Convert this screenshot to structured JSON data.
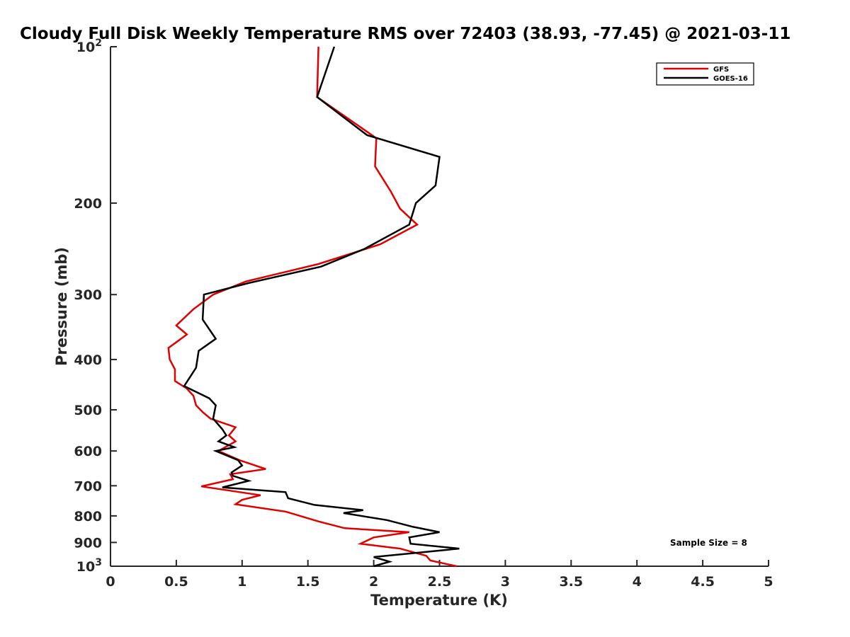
{
  "chart_data": {
    "type": "line",
    "title": "Cloudy Full Disk Weekly Temperature RMS over 72403 (38.93, -77.45) @ 2021-03-11",
    "xlabel": "Temperature (K)",
    "ylabel": "Pressure (mb)",
    "xlim": [
      0,
      5
    ],
    "ylim": [
      100,
      1000
    ],
    "y_scale": "log",
    "y_reversed": true,
    "x_ticks": [
      "0",
      "0.5",
      "1",
      "1.5",
      "2",
      "2.5",
      "3",
      "3.5",
      "4",
      "4.5",
      "5"
    ],
    "y_ticks": [
      {
        "value": 100,
        "base": "10",
        "exp": "2"
      },
      {
        "value": 200,
        "label": "200"
      },
      {
        "value": 300,
        "label": "300"
      },
      {
        "value": 400,
        "label": "400"
      },
      {
        "value": 500,
        "label": "500"
      },
      {
        "value": 600,
        "label": "600"
      },
      {
        "value": 700,
        "label": "700"
      },
      {
        "value": 800,
        "label": "800"
      },
      {
        "value": 900,
        "label": "900"
      },
      {
        "value": 1000,
        "base": "10",
        "exp": "3"
      }
    ],
    "grid": false,
    "legend_position": "top-right",
    "annotation": "Sample Size = 8",
    "series": [
      {
        "name": "GFS",
        "color": "#e00000",
        "points": [
          [
            1.58,
            100
          ],
          [
            1.57,
            125
          ],
          [
            2.02,
            150
          ],
          [
            2.01,
            170
          ],
          [
            2.13,
            190
          ],
          [
            2.2,
            205
          ],
          [
            2.33,
            220
          ],
          [
            2.05,
            240
          ],
          [
            1.58,
            262
          ],
          [
            1.03,
            283
          ],
          [
            0.78,
            300
          ],
          [
            0.63,
            320
          ],
          [
            0.5,
            344
          ],
          [
            0.58,
            358
          ],
          [
            0.44,
            380
          ],
          [
            0.45,
            400
          ],
          [
            0.49,
            418
          ],
          [
            0.49,
            440
          ],
          [
            0.58,
            455
          ],
          [
            0.63,
            470
          ],
          [
            0.65,
            490
          ],
          [
            0.7,
            505
          ],
          [
            0.76,
            520
          ],
          [
            0.95,
            540
          ],
          [
            0.9,
            560
          ],
          [
            0.95,
            575
          ],
          [
            0.82,
            600
          ],
          [
            0.98,
            625
          ],
          [
            1.18,
            650
          ],
          [
            0.91,
            665
          ],
          [
            0.93,
            680
          ],
          [
            0.69,
            702
          ],
          [
            1.14,
            730
          ],
          [
            1.0,
            745
          ],
          [
            0.95,
            760
          ],
          [
            1.33,
            785
          ],
          [
            1.58,
            820
          ],
          [
            1.78,
            845
          ],
          [
            2.27,
            860
          ],
          [
            2.0,
            880
          ],
          [
            1.9,
            905
          ],
          [
            2.2,
            925
          ],
          [
            2.4,
            955
          ],
          [
            2.43,
            975
          ],
          [
            2.63,
            1000
          ]
        ]
      },
      {
        "name": "GOES-16",
        "color": "#000000",
        "points": [
          [
            1.7,
            100
          ],
          [
            1.57,
            125
          ],
          [
            1.95,
            148
          ],
          [
            2.5,
            163
          ],
          [
            2.47,
            185
          ],
          [
            2.32,
            200
          ],
          [
            2.27,
            220
          ],
          [
            1.93,
            245
          ],
          [
            1.6,
            265
          ],
          [
            1.05,
            285
          ],
          [
            0.71,
            300
          ],
          [
            0.7,
            335
          ],
          [
            0.8,
            365
          ],
          [
            0.67,
            385
          ],
          [
            0.65,
            415
          ],
          [
            0.56,
            450
          ],
          [
            0.75,
            475
          ],
          [
            0.8,
            490
          ],
          [
            0.78,
            520
          ],
          [
            0.85,
            545
          ],
          [
            0.88,
            560
          ],
          [
            0.82,
            575
          ],
          [
            0.94,
            590
          ],
          [
            0.8,
            600
          ],
          [
            0.97,
            625
          ],
          [
            1.0,
            640
          ],
          [
            0.92,
            660
          ],
          [
            0.93,
            670
          ],
          [
            1.05,
            685
          ],
          [
            0.85,
            705
          ],
          [
            1.33,
            720
          ],
          [
            1.35,
            740
          ],
          [
            1.55,
            762
          ],
          [
            1.92,
            780
          ],
          [
            1.77,
            790
          ],
          [
            2.1,
            815
          ],
          [
            2.3,
            840
          ],
          [
            2.5,
            860
          ],
          [
            2.27,
            880
          ],
          [
            2.28,
            905
          ],
          [
            2.65,
            925
          ],
          [
            2.0,
            960
          ],
          [
            2.12,
            980
          ],
          [
            2.0,
            1000
          ]
        ]
      }
    ]
  }
}
